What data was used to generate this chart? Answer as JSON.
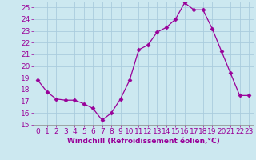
{
  "x": [
    0,
    1,
    2,
    3,
    4,
    5,
    6,
    7,
    8,
    9,
    10,
    11,
    12,
    13,
    14,
    15,
    16,
    17,
    18,
    19,
    20,
    21,
    22,
    23
  ],
  "y": [
    18.8,
    17.8,
    17.2,
    17.1,
    17.1,
    16.8,
    16.4,
    15.4,
    16.0,
    17.2,
    18.8,
    21.4,
    21.8,
    22.9,
    23.3,
    24.0,
    25.4,
    24.8,
    24.8,
    23.2,
    21.3,
    19.4,
    17.5,
    17.5
  ],
  "line_color": "#990099",
  "marker": "D",
  "marker_size": 2.5,
  "background_color": "#cce8f0",
  "grid_color": "#aaccdd",
  "xlabel": "Windchill (Refroidissement éolien,°C)",
  "xlabel_color": "#990099",
  "tick_color": "#990099",
  "ylim": [
    15,
    25.5
  ],
  "xlim": [
    -0.5,
    23.5
  ],
  "yticks": [
    15,
    16,
    17,
    18,
    19,
    20,
    21,
    22,
    23,
    24,
    25
  ],
  "xticks": [
    0,
    1,
    2,
    3,
    4,
    5,
    6,
    7,
    8,
    9,
    10,
    11,
    12,
    13,
    14,
    15,
    16,
    17,
    18,
    19,
    20,
    21,
    22,
    23
  ],
  "xtick_labels": [
    "0",
    "1",
    "2",
    "3",
    "4",
    "5",
    "6",
    "7",
    "8",
    "9",
    "10",
    "11",
    "12",
    "13",
    "14",
    "15",
    "16",
    "17",
    "18",
    "19",
    "20",
    "21",
    "22",
    "23"
  ],
  "label_fontsize": 6.5,
  "tick_fontsize": 6.5
}
